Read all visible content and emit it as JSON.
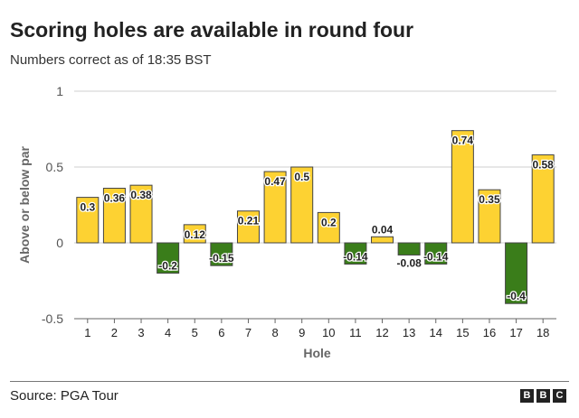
{
  "title": "Scoring holes are available in round four",
  "subtitle": "Numbers correct as of 18:35 BST",
  "source": "Source: PGA Tour",
  "logo_letters": [
    "B",
    "B",
    "C"
  ],
  "colors": {
    "positive": "#fdd232",
    "negative": "#3a7d1a",
    "outline": "#444444",
    "grid": "#cfcfcf"
  },
  "chart_data": {
    "type": "bar",
    "xlabel": "Hole",
    "ylabel": "Above or below par",
    "ylim": [
      -0.5,
      1
    ],
    "yticks": [
      -0.5,
      0,
      0.5,
      1
    ],
    "grid": true,
    "categories": [
      "1",
      "2",
      "3",
      "4",
      "5",
      "6",
      "7",
      "8",
      "9",
      "10",
      "11",
      "12",
      "13",
      "14",
      "15",
      "16",
      "17",
      "18"
    ],
    "values": [
      0.3,
      0.36,
      0.38,
      -0.2,
      0.12,
      -0.15,
      0.21,
      0.47,
      0.5,
      0.2,
      -0.14,
      0.04,
      -0.08,
      -0.14,
      0.74,
      0.35,
      -0.4,
      0.58
    ],
    "value_labels": [
      "0.3",
      "0.36",
      "0.38",
      "-0.2",
      "0.12",
      "-0.15",
      "0.21",
      "0.47",
      "0.5",
      "0.2",
      "-0.14",
      "0.04",
      "-0.08",
      "-0.14",
      "0.74",
      "0.35",
      "-0.4",
      "0.58"
    ],
    "ytick_labels": [
      "-0.5",
      "0",
      "0.5",
      "1"
    ]
  }
}
